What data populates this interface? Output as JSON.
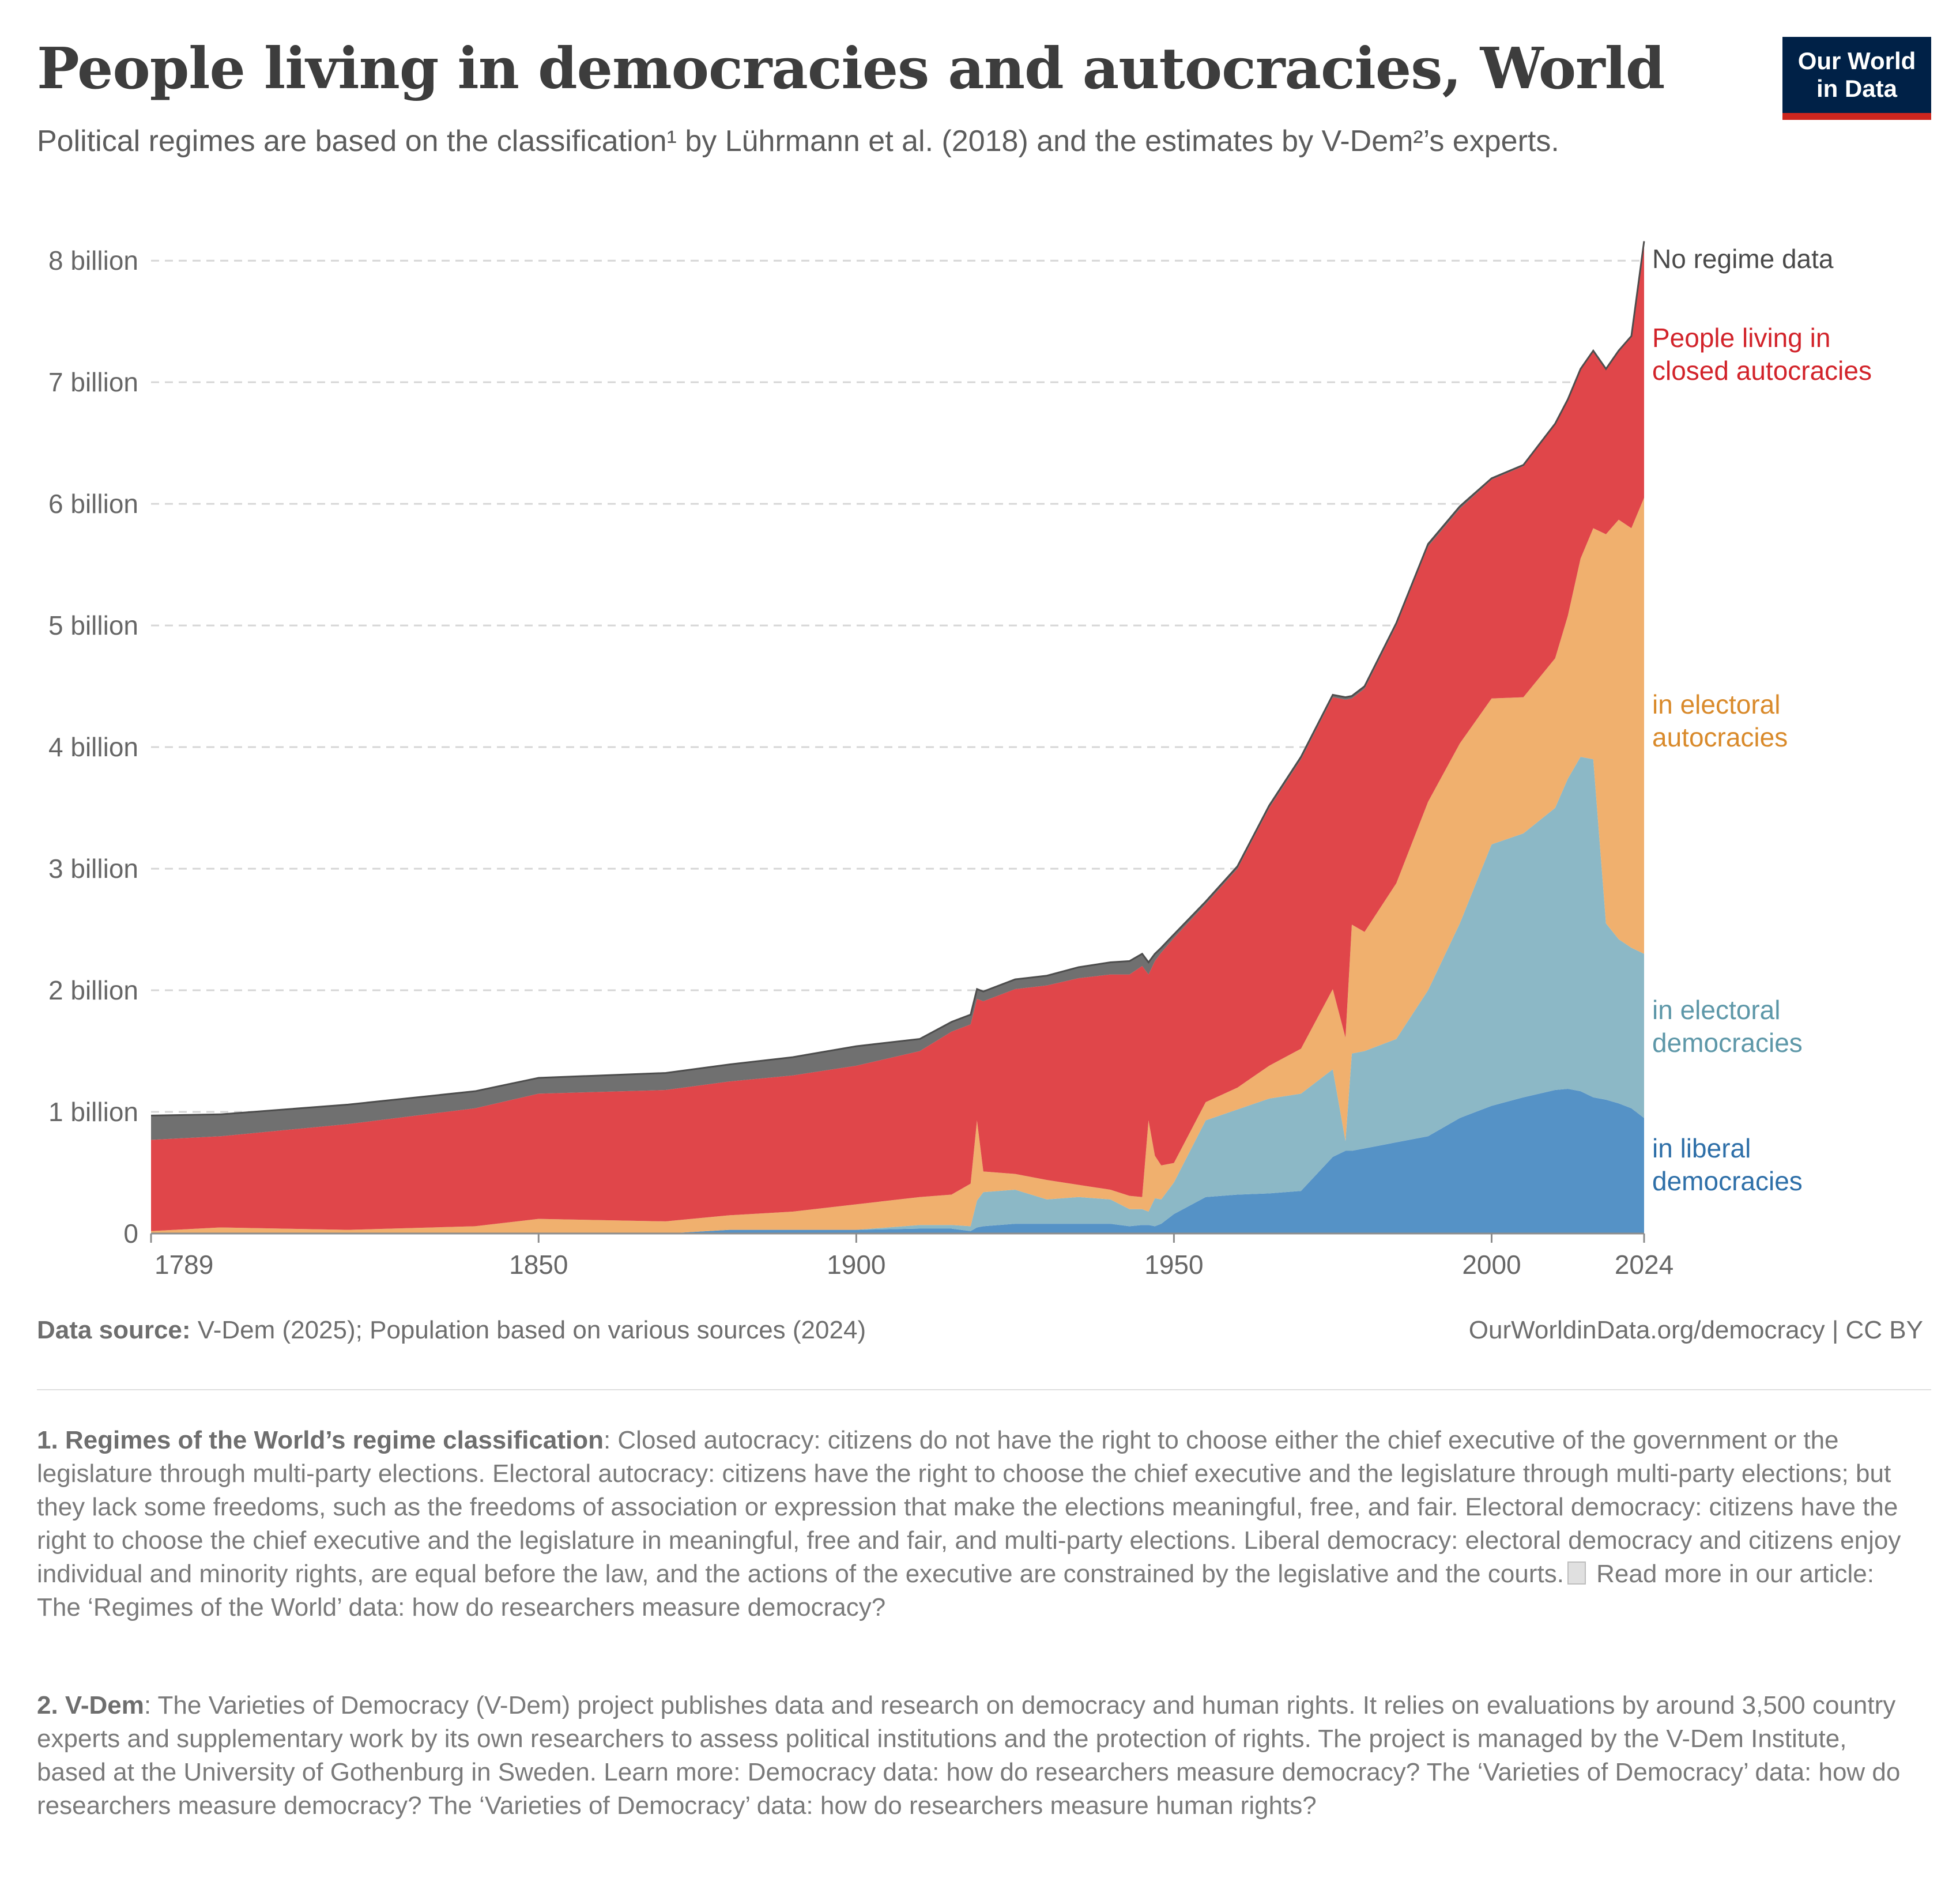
{
  "header": {
    "title": "People living in democracies and autocracies, World",
    "subtitle": "Political regimes are based on the classification¹ by Lührmann et al. (2018) and the estimates by V-Dem²’s experts.",
    "logo_line1": "Our World",
    "logo_line2": "in Data"
  },
  "colors": {
    "no_regime": "#707070",
    "closed_autocracies": "#e0464a",
    "electoral_autocracies": "#f0b06e",
    "electoral_democracies": "#8cb8c6",
    "liberal_democracies": "#5592c6",
    "label_no_regime": "#4a4a4a",
    "label_closed": "#d2232a",
    "label_electoral_autocracies": "#d98a2b",
    "label_electoral_democracies": "#5d97a8",
    "label_liberal": "#2e6fa8"
  },
  "chart_data": {
    "type": "area",
    "stacked": true,
    "x_ticks": [
      "1789",
      "1850",
      "1900",
      "1950",
      "2000",
      "2024"
    ],
    "y_ticks": [
      "0",
      "1 billion",
      "2 billion",
      "3 billion",
      "4 billion",
      "5 billion",
      "6 billion",
      "7 billion",
      "8 billion"
    ],
    "ylim": [
      0,
      8.2
    ],
    "xlim": [
      1789,
      2024
    ],
    "y_unit": "billion",
    "grid": "horizontal-dashed",
    "legend": "right-inline",
    "x": [
      1789,
      1800,
      1820,
      1840,
      1850,
      1870,
      1880,
      1890,
      1900,
      1910,
      1915,
      1918,
      1919,
      1920,
      1925,
      1930,
      1935,
      1940,
      1943,
      1945,
      1946,
      1947,
      1948,
      1950,
      1955,
      1960,
      1965,
      1970,
      1975,
      1977,
      1978,
      1980,
      1985,
      1990,
      1995,
      2000,
      2005,
      2010,
      2012,
      2014,
      2016,
      2018,
      2020,
      2022,
      2024
    ],
    "series": [
      {
        "name": "in liberal democracies",
        "values": [
          0,
          0,
          0,
          0,
          0,
          0,
          0.03,
          0.03,
          0.03,
          0.04,
          0.04,
          0.02,
          0.05,
          0.06,
          0.08,
          0.08,
          0.08,
          0.08,
          0.06,
          0.07,
          0.07,
          0.06,
          0.08,
          0.16,
          0.3,
          0.32,
          0.33,
          0.35,
          0.63,
          0.68,
          0.68,
          0.7,
          0.75,
          0.8,
          0.95,
          1.05,
          1.12,
          1.18,
          1.19,
          1.17,
          1.12,
          1.1,
          1.07,
          1.03,
          0.95
        ]
      },
      {
        "name": "in electoral democracies",
        "values": [
          0,
          0,
          0,
          0,
          0,
          0,
          0,
          0,
          0,
          0.03,
          0.03,
          0.04,
          0.22,
          0.28,
          0.28,
          0.2,
          0.22,
          0.2,
          0.14,
          0.13,
          0.11,
          0.23,
          0.2,
          0.26,
          0.63,
          0.7,
          0.78,
          0.8,
          0.72,
          0.08,
          0.8,
          0.8,
          0.85,
          1.2,
          1.6,
          2.15,
          2.17,
          2.32,
          2.55,
          2.75,
          2.78,
          1.45,
          1.35,
          1.32,
          1.35
        ]
      },
      {
        "name": "in electoral autocracies",
        "values": [
          0.02,
          0.05,
          0.03,
          0.06,
          0.12,
          0.1,
          0.12,
          0.15,
          0.21,
          0.23,
          0.25,
          0.35,
          0.66,
          0.17,
          0.13,
          0.16,
          0.1,
          0.08,
          0.11,
          0.1,
          0.75,
          0.35,
          0.28,
          0.16,
          0.15,
          0.18,
          0.27,
          0.37,
          0.66,
          0.85,
          1.06,
          0.98,
          1.28,
          1.55,
          1.48,
          1.2,
          1.12,
          1.23,
          1.34,
          1.63,
          1.9,
          3.2,
          3.45,
          3.45,
          3.75
        ]
      },
      {
        "name": "People living in closed autocracies",
        "values": [
          0.75,
          0.75,
          0.87,
          0.97,
          1.03,
          1.08,
          1.1,
          1.12,
          1.14,
          1.2,
          1.34,
          1.31,
          1.0,
          1.4,
          1.52,
          1.6,
          1.7,
          1.77,
          1.82,
          1.9,
          1.2,
          1.6,
          1.75,
          1.85,
          1.63,
          1.8,
          2.12,
          2.38,
          2.4,
          2.78,
          1.86,
          2.0,
          2.12,
          2.1,
          1.93,
          1.8,
          1.9,
          1.92,
          1.77,
          1.55,
          1.45,
          1.35,
          1.38,
          1.57,
          2.1
        ]
      },
      {
        "name": "No regime data",
        "values": [
          0.2,
          0.18,
          0.16,
          0.14,
          0.13,
          0.14,
          0.14,
          0.15,
          0.16,
          0.1,
          0.08,
          0.08,
          0.08,
          0.08,
          0.08,
          0.08,
          0.09,
          0.1,
          0.11,
          0.1,
          0.1,
          0.06,
          0.04,
          0.03,
          0.02,
          0.02,
          0.02,
          0.02,
          0.02,
          0.02,
          0.02,
          0.02,
          0.02,
          0.02,
          0.02,
          0.01,
          0.01,
          0.01,
          0.01,
          0.01,
          0.01,
          0.01,
          0.01,
          0.01,
          0.01
        ]
      }
    ],
    "labels": {
      "no_regime": "No regime data",
      "closed_line1": "People living in",
      "closed_line2": "closed autocracies",
      "el_aut_line1": "in electoral",
      "el_aut_line2": "autocracies",
      "el_dem_line1": "in electoral",
      "el_dem_line2": "democracies",
      "lib_line1": "in liberal",
      "lib_line2": "democracies"
    }
  },
  "footer": {
    "source_label": "Data source:",
    "source_text": " V-Dem (2025); Population based on various sources (2024)",
    "credit": "OurWorldinData.org/democracy | CC BY",
    "note1_label": "1. Regimes of the World’s regime classification",
    "note1_text": ": Closed autocracy: citizens do not have the right to choose either the chief executive of the government or the legislature through multi-party elections. Electoral autocracy: citizens have the right to choose the chief executive and the legislature through multi-party elections; but they lack some freedoms, such as the freedoms of association or expression that make the elections meaningful, free, and fair. Electoral democracy: citizens have the right to choose the chief executive and the legislature in meaningful, free and fair, and multi-party elections. Liberal democracy: electoral democracy and citizens enjoy individual and minority rights, are equal before the law, and the actions of the executive are constrained by the legislative and the courts.",
    "note1_more": " Read more in our article: The ‘Regimes of the World’ data: how do researchers measure democracy?",
    "note2_label": "2. V-Dem",
    "note2_text": ": The Varieties of Democracy (V-Dem) project publishes data and research on democracy and human rights. It relies on evaluations by around 3,500 country experts and supplementary work by its own researchers to assess political institutions and the protection of rights. The project is managed by the V-Dem Institute, based at the University of Gothenburg in Sweden. Learn more: Democracy data: how do researchers measure democracy? The ‘Varieties of Democracy’ data: how do researchers measure democracy? The ‘Varieties of Democracy’ data: how do researchers measure human rights?"
  }
}
